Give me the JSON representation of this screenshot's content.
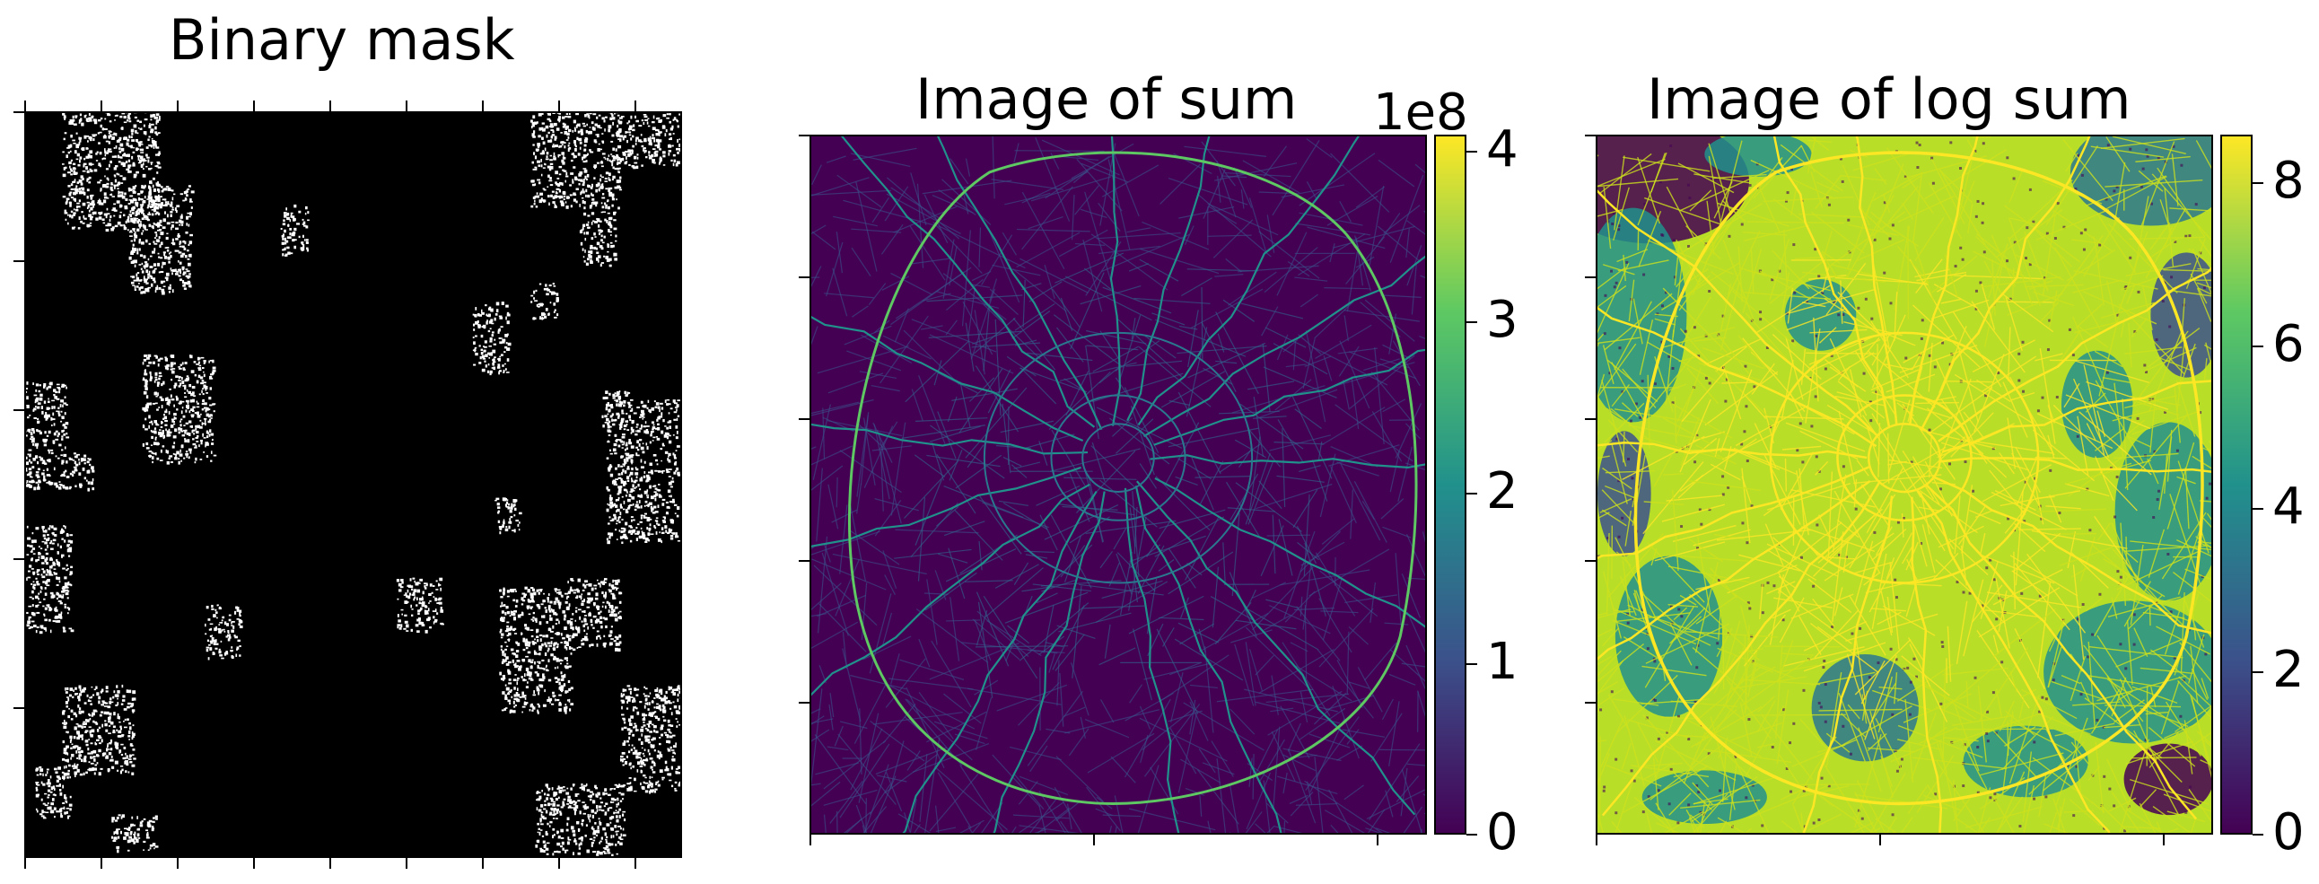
{
  "chart_data": [
    {
      "type": "heatmap",
      "title": "Binary mask",
      "colormap": "gray",
      "value_range": [
        0,
        1
      ],
      "axis_ticks_x": 9,
      "axis_ticks_y": 5,
      "tick_labels_visible": false
    },
    {
      "type": "heatmap",
      "title": "Image of sum",
      "colormap": "viridis",
      "colorbar": {
        "ticks": [
          "0",
          "1",
          "2",
          "3",
          "4"
        ],
        "values": [
          0,
          1,
          2,
          3,
          4
        ],
        "range": [
          0,
          4.1
        ],
        "offset_text": "1e8"
      },
      "axis_ticks_x": 3,
      "axis_ticks_y": 5,
      "tick_labels_visible": false
    },
    {
      "type": "heatmap",
      "title": "Image of log sum",
      "colormap": "viridis",
      "colorbar": {
        "ticks": [
          "0",
          "2",
          "4",
          "6",
          "8"
        ],
        "values": [
          0,
          2,
          4,
          6,
          8
        ],
        "range": [
          0,
          8.6
        ]
      },
      "axis_ticks_x": 3,
      "axis_ticks_y": 5,
      "tick_labels_visible": false
    }
  ],
  "colors": {
    "viridis_low": "#440154",
    "viridis_mid": "#21918c",
    "viridis_high": "#fde725",
    "mask_background": "#000000",
    "mask_foreground": "#ffffff"
  }
}
